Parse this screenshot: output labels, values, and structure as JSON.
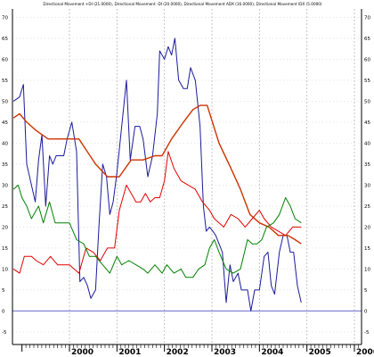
{
  "chart_data": {
    "type": "line",
    "title": "Directional Movement +DI (21.0000), Directional Movement -DI (20.0000), Directional Movement ADX (16.0000), Directional Movement IDX (5.0000)",
    "xlabel": "",
    "ylabel": "",
    "ylim": [
      -8,
      72
    ],
    "y_ticks": [
      -5,
      0,
      5,
      10,
      15,
      20,
      25,
      30,
      35,
      40,
      45,
      50,
      55,
      60,
      65,
      70
    ],
    "x_ticks": [
      {
        "label": "2000",
        "x": 2000.0
      },
      {
        "label": "2001",
        "x": 2001.0
      },
      {
        "label": "2002",
        "x": 2002.0
      },
      {
        "label": "2003",
        "x": 2003.0
      },
      {
        "label": "2004",
        "x": 2004.0
      },
      {
        "label": "2005",
        "x": 2005.0
      },
      {
        "label": "2006",
        "x": 2006.0
      }
    ],
    "xlim": [
      1998.8,
      2006.15
    ],
    "grid": true,
    "legend": "none",
    "reference_line": {
      "y": 0,
      "color": "#6a6acc"
    },
    "series": [
      {
        "color": "#1a1a9c",
        "width": 1,
        "points": [
          [
            1998.82,
            50
          ],
          [
            1998.95,
            51
          ],
          [
            1999.03,
            54
          ],
          [
            1999.1,
            35
          ],
          [
            1999.18,
            31
          ],
          [
            1999.28,
            26
          ],
          [
            1999.35,
            36
          ],
          [
            1999.42,
            42
          ],
          [
            1999.5,
            25
          ],
          [
            1999.58,
            37
          ],
          [
            1999.65,
            35
          ],
          [
            1999.72,
            37
          ],
          [
            1999.88,
            37
          ],
          [
            1999.95,
            41
          ],
          [
            2000.05,
            45
          ],
          [
            2000.15,
            38
          ],
          [
            2000.22,
            7
          ],
          [
            2000.3,
            8
          ],
          [
            2000.38,
            6
          ],
          [
            2000.45,
            3
          ],
          [
            2000.55,
            5
          ],
          [
            2000.62,
            20
          ],
          [
            2000.7,
            35
          ],
          [
            2000.78,
            32
          ],
          [
            2000.85,
            23
          ],
          [
            2000.92,
            26
          ],
          [
            2001.0,
            33
          ],
          [
            2001.1,
            44
          ],
          [
            2001.2,
            55
          ],
          [
            2001.28,
            36
          ],
          [
            2001.38,
            44
          ],
          [
            2001.48,
            44
          ],
          [
            2001.55,
            41
          ],
          [
            2001.65,
            32
          ],
          [
            2001.75,
            37
          ],
          [
            2001.85,
            47
          ],
          [
            2001.9,
            62
          ],
          [
            2002.0,
            60
          ],
          [
            2002.08,
            63
          ],
          [
            2002.15,
            61
          ],
          [
            2002.22,
            65
          ],
          [
            2002.3,
            55
          ],
          [
            2002.4,
            53
          ],
          [
            2002.48,
            53
          ],
          [
            2002.55,
            58
          ],
          [
            2002.65,
            55
          ],
          [
            2002.75,
            44
          ],
          [
            2002.82,
            25
          ],
          [
            2002.88,
            19
          ],
          [
            2002.95,
            20
          ],
          [
            2003.02,
            19
          ],
          [
            2003.08,
            18
          ],
          [
            2003.15,
            16
          ],
          [
            2003.22,
            14
          ],
          [
            2003.3,
            2
          ],
          [
            2003.38,
            11
          ],
          [
            2003.45,
            7
          ],
          [
            2003.55,
            9
          ],
          [
            2003.62,
            5
          ],
          [
            2003.75,
            5
          ],
          [
            2003.82,
            0
          ],
          [
            2003.9,
            5
          ],
          [
            2004.0,
            5
          ],
          [
            2004.1,
            13
          ],
          [
            2004.18,
            14
          ],
          [
            2004.25,
            6
          ],
          [
            2004.32,
            4
          ],
          [
            2004.42,
            14
          ],
          [
            2004.5,
            18
          ],
          [
            2004.58,
            18
          ],
          [
            2004.65,
            14
          ],
          [
            2004.72,
            14
          ],
          [
            2004.8,
            6
          ],
          [
            2004.88,
            2
          ]
        ]
      },
      {
        "color": "#cc3300",
        "width": 1.4,
        "points": [
          [
            1998.82,
            46
          ],
          [
            1998.95,
            47
          ],
          [
            1999.1,
            45
          ],
          [
            1999.3,
            43
          ],
          [
            1999.55,
            41
          ],
          [
            1999.85,
            41
          ],
          [
            2000.2,
            41
          ],
          [
            2000.55,
            35
          ],
          [
            2000.8,
            32
          ],
          [
            2001.05,
            32
          ],
          [
            2001.3,
            36
          ],
          [
            2001.55,
            36
          ],
          [
            2001.8,
            37
          ],
          [
            2001.95,
            37
          ],
          [
            2002.15,
            41
          ],
          [
            2002.4,
            45
          ],
          [
            2002.6,
            48
          ],
          [
            2002.75,
            49
          ],
          [
            2002.9,
            49
          ],
          [
            2003.15,
            40
          ],
          [
            2003.4,
            34
          ],
          [
            2003.6,
            29
          ],
          [
            2003.8,
            23
          ],
          [
            2004.0,
            21
          ],
          [
            2004.2,
            20
          ],
          [
            2004.4,
            18
          ],
          [
            2004.6,
            18
          ],
          [
            2004.75,
            17
          ],
          [
            2004.88,
            16
          ]
        ]
      },
      {
        "color": "#e00000",
        "width": 1,
        "points": [
          [
            1998.82,
            10
          ],
          [
            1998.95,
            9
          ],
          [
            1999.05,
            13
          ],
          [
            1999.2,
            13
          ],
          [
            1999.3,
            12
          ],
          [
            1999.45,
            11
          ],
          [
            1999.6,
            13
          ],
          [
            1999.75,
            11
          ],
          [
            2000.0,
            11
          ],
          [
            2000.2,
            9
          ],
          [
            2000.35,
            15
          ],
          [
            2000.5,
            14
          ],
          [
            2000.65,
            12
          ],
          [
            2000.8,
            15
          ],
          [
            2000.95,
            15
          ],
          [
            2001.05,
            24
          ],
          [
            2001.2,
            30
          ],
          [
            2001.3,
            28
          ],
          [
            2001.4,
            26
          ],
          [
            2001.5,
            26
          ],
          [
            2001.6,
            28
          ],
          [
            2001.7,
            26
          ],
          [
            2001.8,
            27
          ],
          [
            2001.9,
            27
          ],
          [
            2002.0,
            31
          ],
          [
            2002.08,
            38
          ],
          [
            2002.2,
            34
          ],
          [
            2002.35,
            31
          ],
          [
            2002.5,
            30
          ],
          [
            2002.65,
            29
          ],
          [
            2002.8,
            26
          ],
          [
            2002.95,
            24
          ],
          [
            2003.05,
            22
          ],
          [
            2003.15,
            21
          ],
          [
            2003.25,
            20
          ],
          [
            2003.4,
            23
          ],
          [
            2003.55,
            22
          ],
          [
            2003.7,
            20
          ],
          [
            2003.85,
            22
          ],
          [
            2004.0,
            24
          ],
          [
            2004.1,
            22
          ],
          [
            2004.25,
            20
          ],
          [
            2004.4,
            19
          ],
          [
            2004.55,
            18
          ],
          [
            2004.7,
            20
          ],
          [
            2004.88,
            20
          ]
        ]
      },
      {
        "color": "#008000",
        "width": 1,
        "points": [
          [
            1998.82,
            29
          ],
          [
            1998.92,
            30
          ],
          [
            1999.0,
            27
          ],
          [
            1999.1,
            25
          ],
          [
            1999.2,
            22
          ],
          [
            1999.35,
            25
          ],
          [
            1999.45,
            21
          ],
          [
            1999.58,
            26
          ],
          [
            1999.7,
            21
          ],
          [
            1999.85,
            21
          ],
          [
            2000.0,
            21
          ],
          [
            2000.15,
            17
          ],
          [
            2000.3,
            16
          ],
          [
            2000.42,
            13
          ],
          [
            2000.55,
            13
          ],
          [
            2000.7,
            11
          ],
          [
            2000.85,
            9
          ],
          [
            2001.0,
            13
          ],
          [
            2001.1,
            11
          ],
          [
            2001.25,
            12
          ],
          [
            2001.4,
            11
          ],
          [
            2001.55,
            10
          ],
          [
            2001.65,
            9
          ],
          [
            2001.8,
            11
          ],
          [
            2001.95,
            9
          ],
          [
            2002.05,
            11
          ],
          [
            2002.2,
            9
          ],
          [
            2002.35,
            10
          ],
          [
            2002.45,
            8
          ],
          [
            2002.6,
            8
          ],
          [
            2002.72,
            10
          ],
          [
            2002.85,
            11
          ],
          [
            2002.95,
            15
          ],
          [
            2003.05,
            17
          ],
          [
            2003.15,
            14
          ],
          [
            2003.3,
            10
          ],
          [
            2003.45,
            9
          ],
          [
            2003.6,
            10
          ],
          [
            2003.75,
            17
          ],
          [
            2003.85,
            16
          ],
          [
            2003.95,
            16
          ],
          [
            2004.05,
            17
          ],
          [
            2004.15,
            20
          ],
          [
            2004.3,
            21
          ],
          [
            2004.42,
            23
          ],
          [
            2004.55,
            27
          ],
          [
            2004.65,
            25
          ],
          [
            2004.75,
            22
          ],
          [
            2004.88,
            21
          ]
        ]
      }
    ]
  }
}
